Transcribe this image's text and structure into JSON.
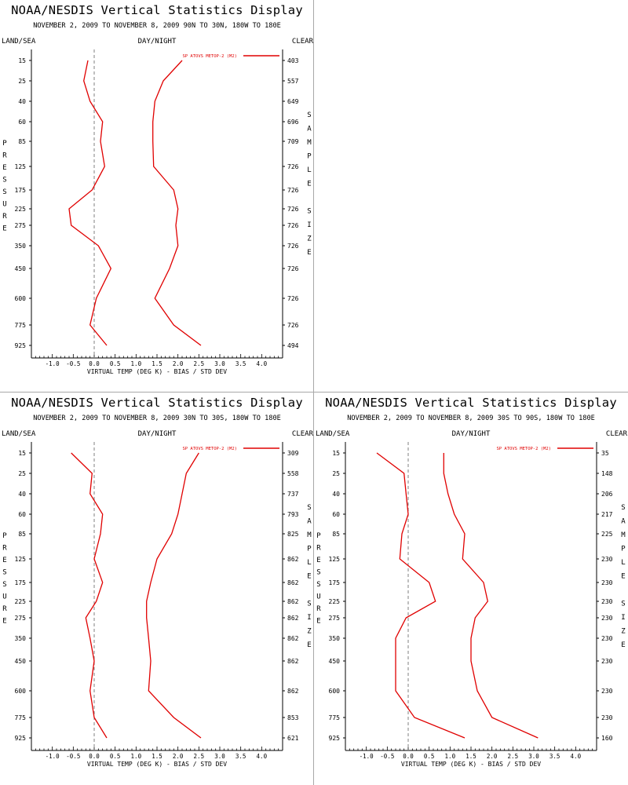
{
  "panels": [
    {
      "title": "NOAA/NESDIS Vertical Statistics Display",
      "subtitle": "NOVEMBER 2, 2009 TO NOVEMBER 8, 2009 90N TO 30N, 180W TO 180E",
      "left_header": "LAND/SEA",
      "middle_header": "DAY/NIGHT",
      "right_header": "CLEAR",
      "left_axis_label": "PRESSURE",
      "right_axis_label": "SAMPLE SIZE",
      "x_axis_label": "VIRTUAL TEMP (DEG K) - BIAS / STD DEV",
      "legend": "SP ATOVS METOP-2 (M2)",
      "line_color": "#e00000",
      "chart_data": {
        "type": "line",
        "title": "NOAA/NESDIS Vertical Statistics Display",
        "xlabel": "VIRTUAL TEMP (DEG K) - BIAS / STD DEV",
        "ylabel": "PRESSURE",
        "xlim": [
          -1.5,
          4.5
        ],
        "x_ticks": [
          "-1.0",
          "-0.5",
          "0.0",
          "0.5",
          "1.0",
          "1.5",
          "2.0",
          "2.5",
          "3.0",
          "3.5",
          "4.0"
        ],
        "pressure_levels": [
          15,
          25,
          40,
          60,
          85,
          125,
          175,
          225,
          275,
          350,
          450,
          600,
          775,
          925
        ],
        "sample_sizes": [
          403,
          557,
          649,
          696,
          709,
          726,
          726,
          726,
          726,
          726,
          726,
          726,
          726,
          494
        ],
        "series": [
          {
            "name": "SP ATOVS METOP-2 (M2)",
            "values": [
              -0.15,
              -0.25,
              -0.1,
              0.2,
              0.15,
              0.25,
              -0.05,
              -0.6,
              -0.55,
              0.1,
              0.4,
              0.05,
              -0.1,
              0.3
            ]
          },
          {
            "values": [
              2.1,
              1.65,
              1.45,
              1.4,
              1.4,
              1.42,
              1.9,
              2.0,
              1.95,
              2.0,
              1.8,
              1.45,
              1.9,
              2.55
            ]
          }
        ]
      }
    },
    {
      "title": "NOAA/NESDIS Vertical Statistics Display",
      "subtitle": "NOVEMBER 2, 2009 TO NOVEMBER 8, 2009 30N TO 30S, 180W TO 180E",
      "left_header": "LAND/SEA",
      "middle_header": "DAY/NIGHT",
      "right_header": "CLEAR",
      "left_axis_label": "PRESSURE",
      "right_axis_label": "SAMPLE SIZE",
      "x_axis_label": "VIRTUAL TEMP (DEG K) - BIAS / STD DEV",
      "legend": "SP ATOVS METOP-2 (M2)",
      "line_color": "#e00000",
      "chart_data": {
        "type": "line",
        "title": "NOAA/NESDIS Vertical Statistics Display",
        "xlabel": "VIRTUAL TEMP (DEG K) - BIAS / STD DEV",
        "ylabel": "PRESSURE",
        "xlim": [
          -1.5,
          4.5
        ],
        "x_ticks": [
          "-1.0",
          "-0.5",
          "0.0",
          "0.5",
          "1.0",
          "1.5",
          "2.0",
          "2.5",
          "3.0",
          "3.5",
          "4.0"
        ],
        "pressure_levels": [
          15,
          25,
          40,
          60,
          85,
          125,
          175,
          225,
          275,
          350,
          450,
          600,
          775,
          925
        ],
        "sample_sizes": [
          309,
          558,
          737,
          793,
          825,
          862,
          862,
          862,
          862,
          862,
          862,
          862,
          853,
          621
        ],
        "series": [
          {
            "name": "SP ATOVS METOP-2 (M2)",
            "values": [
              -0.55,
              -0.05,
              -0.1,
              0.2,
              0.15,
              0.0,
              0.2,
              0.05,
              -0.2,
              -0.1,
              0.0,
              -0.1,
              0.0,
              0.3
            ]
          },
          {
            "values": [
              2.5,
              2.2,
              2.1,
              2.0,
              1.85,
              1.5,
              1.35,
              1.25,
              1.25,
              1.3,
              1.35,
              1.3,
              1.9,
              2.55
            ]
          }
        ]
      }
    },
    {
      "title": "NOAA/NESDIS Vertical Statistics Display",
      "subtitle": "NOVEMBER 2, 2009 TO NOVEMBER 8, 2009 30S TO 90S, 180W TO 180E",
      "left_header": "LAND/SEA",
      "middle_header": "DAY/NIGHT",
      "right_header": "CLEAR",
      "left_axis_label": "PRESSURE",
      "right_axis_label": "SAMPLE SIZE",
      "x_axis_label": "VIRTUAL TEMP (DEG K) - BIAS / STD DEV",
      "legend": "SP ATOVS METOP-2 (M2)",
      "line_color": "#e00000",
      "chart_data": {
        "type": "line",
        "title": "NOAA/NESDIS Vertical Statistics Display",
        "xlabel": "VIRTUAL TEMP (DEG K) - BIAS / STD DEV",
        "ylabel": "PRESSURE",
        "xlim": [
          -1.5,
          4.5
        ],
        "x_ticks": [
          "-1.0",
          "-0.5",
          "0.0",
          "0.5",
          "1.0",
          "1.5",
          "2.0",
          "2.5",
          "3.0",
          "3.5",
          "4.0"
        ],
        "pressure_levels": [
          15,
          25,
          40,
          60,
          85,
          125,
          175,
          225,
          275,
          350,
          450,
          600,
          775,
          925
        ],
        "sample_sizes": [
          35,
          148,
          206,
          217,
          225,
          230,
          230,
          230,
          230,
          230,
          230,
          230,
          230,
          160
        ],
        "series": [
          {
            "name": "SP ATOVS METOP-2 (M2)",
            "values": [
              -0.75,
              -0.1,
              -0.05,
              0.0,
              -0.15,
              -0.2,
              0.5,
              0.65,
              -0.05,
              -0.3,
              -0.3,
              -0.3,
              0.15,
              1.35
            ]
          },
          {
            "values": [
              0.85,
              0.85,
              0.95,
              1.1,
              1.35,
              1.3,
              1.8,
              1.9,
              1.6,
              1.5,
              1.5,
              1.65,
              2.0,
              3.1
            ]
          }
        ]
      }
    }
  ]
}
